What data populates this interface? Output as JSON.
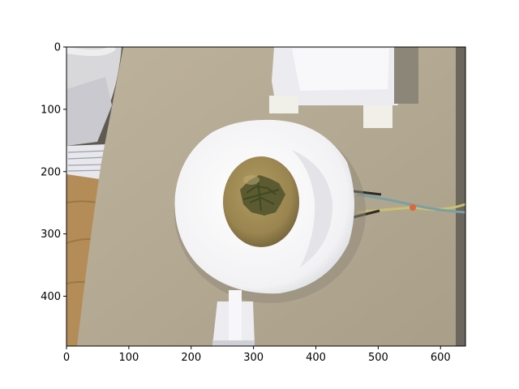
{
  "figure": {
    "background": "#ffffff"
  },
  "photo": {
    "subject": "potato on white foam ring over cardboard",
    "colors": {
      "cardboard": "#b8ad96",
      "cardboard_shadow": "#9d9481",
      "foam": "#f4f4f6",
      "potato_skin": "#a08a55",
      "potato_dark": "#57552f",
      "wood": "#b48c57",
      "wire_yellow": "#c9c070",
      "wire_blue": "#7aa0a3",
      "marker_orange": "#e0653c"
    }
  },
  "axes": {
    "x_ticks": [
      0,
      100,
      200,
      300,
      400,
      500,
      600
    ],
    "y_ticks": [
      0,
      100,
      200,
      300,
      400
    ],
    "xlim": [
      0,
      640
    ],
    "ylim": [
      480,
      0
    ],
    "spine_color": "#000000"
  }
}
